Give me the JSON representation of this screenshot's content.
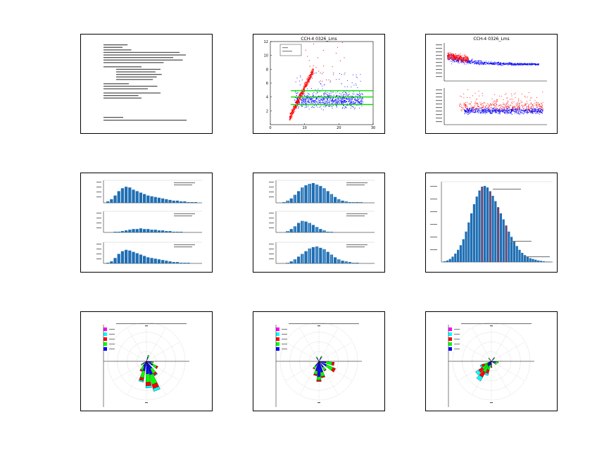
{
  "page": {
    "title": ""
  },
  "chart_data": [
    {
      "type": "table",
      "panel": "p1",
      "title": "",
      "note": "dense text page, mostly illegible at this resolution"
    },
    {
      "type": "scatter",
      "panel": "p2",
      "title": "CCH-4 0326_Lms",
      "xlim": [
        0,
        30
      ],
      "ylim": [
        0,
        12
      ],
      "xticks": [
        "0",
        "10",
        "20",
        "30"
      ],
      "yticks": [
        "2",
        "4",
        "6",
        "8",
        "10",
        "12"
      ],
      "xlabel": "",
      "ylabel": "",
      "series": [
        {
          "name": "",
          "color": "#0000ff"
        },
        {
          "name": "",
          "color": "#ff0000"
        }
      ],
      "hlines": [
        {
          "y": 2.9,
          "color": "#00dd00"
        },
        {
          "y": 4.0,
          "color": "#00dd00"
        },
        {
          "y": 4.9,
          "color": "#00dd00"
        }
      ]
    },
    {
      "type": "scatter",
      "panel": "p3",
      "title": "CCH-4 0326_Lms",
      "subplots": 2,
      "series": [
        {
          "name": "",
          "color": "#0000ff"
        },
        {
          "name": "",
          "color": "#ff0000"
        }
      ]
    },
    {
      "type": "bar",
      "panel": "p4",
      "title": "",
      "subplots": 3,
      "color": "#1f6fb4",
      "profiles": [
        [
          2,
          5,
          10,
          16,
          20,
          22,
          21,
          18,
          16,
          14,
          12,
          10,
          9,
          8,
          7,
          6,
          5,
          4,
          3,
          3,
          2,
          2,
          1,
          1,
          1
        ],
        [
          0,
          0,
          1,
          1,
          2,
          3,
          4,
          5,
          5,
          6,
          5,
          5,
          4,
          4,
          3,
          3,
          2,
          2,
          1,
          1,
          1,
          0,
          0,
          0,
          0
        ],
        [
          1,
          3,
          8,
          14,
          18,
          20,
          19,
          17,
          15,
          13,
          11,
          9,
          8,
          7,
          6,
          5,
          4,
          3,
          2,
          2,
          1,
          1,
          1,
          0,
          0
        ]
      ]
    },
    {
      "type": "bar",
      "panel": "p5",
      "title": "",
      "subplots": 3,
      "color": "#1f6fb4",
      "profiles": [
        [
          0,
          1,
          3,
          6,
          11,
          16,
          21,
          24,
          26,
          27,
          25,
          23,
          20,
          16,
          12,
          8,
          5,
          3,
          2,
          1,
          1,
          1,
          1,
          0,
          0
        ],
        [
          0,
          0,
          2,
          5,
          9,
          14,
          17,
          16,
          14,
          11,
          8,
          5,
          3,
          1,
          1,
          0,
          0,
          0,
          0,
          0,
          0,
          0,
          0,
          0,
          0
        ],
        [
          0,
          0,
          1,
          3,
          6,
          10,
          14,
          18,
          22,
          24,
          25,
          23,
          21,
          17,
          13,
          9,
          6,
          4,
          3,
          2,
          1,
          1,
          0,
          0,
          0
        ]
      ]
    },
    {
      "type": "bar",
      "panel": "p6",
      "title": "",
      "color": "#1f6fb4",
      "highlight_color": "#ff0000",
      "profile": [
        1,
        2,
        4,
        7,
        11,
        16,
        22,
        30,
        40,
        52,
        64,
        76,
        86,
        94,
        99,
        100,
        98,
        93,
        87,
        80,
        72,
        64,
        56,
        48,
        40,
        33,
        27,
        21,
        16,
        12,
        9,
        7,
        5,
        4,
        3,
        2,
        1.5,
        1,
        0.5,
        0.5
      ],
      "highlights": [
        14,
        17,
        20,
        23
      ]
    },
    {
      "type": "rose",
      "panel": "p7",
      "title": "",
      "legend_colors": [
        "#ff00ff",
        "#00ffff",
        "#ff0000",
        "#00ff00",
        "#0000ff"
      ],
      "petals": [
        {
          "deg": 160,
          "segs": [
            20,
            14,
            6,
            4
          ]
        },
        {
          "deg": 175,
          "segs": [
            18,
            12,
            5,
            3
          ]
        },
        {
          "deg": 195,
          "segs": [
            14,
            10,
            4,
            2
          ]
        },
        {
          "deg": 145,
          "segs": [
            12,
            8,
            3,
            1
          ]
        },
        {
          "deg": 210,
          "segs": [
            8,
            6,
            2,
            0
          ]
        },
        {
          "deg": 120,
          "segs": [
            10,
            6,
            2,
            0
          ]
        },
        {
          "deg": 100,
          "segs": [
            7,
            3,
            0,
            0
          ]
        },
        {
          "deg": 20,
          "segs": [
            6,
            3,
            0,
            0
          ]
        },
        {
          "deg": 235,
          "segs": [
            6,
            3,
            0,
            0
          ]
        }
      ]
    },
    {
      "type": "rose",
      "panel": "p8",
      "title": "",
      "legend_colors": [
        "#ff00ff",
        "#00ffff",
        "#ff0000",
        "#00ff00",
        "#0000ff"
      ],
      "petals": [
        {
          "deg": 180,
          "segs": [
            22,
            5,
            2,
            0
          ]
        },
        {
          "deg": 165,
          "segs": [
            16,
            6,
            2,
            0
          ]
        },
        {
          "deg": 195,
          "segs": [
            14,
            5,
            2,
            0
          ]
        },
        {
          "deg": 120,
          "segs": [
            12,
            10,
            4,
            0
          ]
        },
        {
          "deg": 100,
          "segs": [
            10,
            9,
            3,
            0
          ]
        },
        {
          "deg": 145,
          "segs": [
            10,
            5,
            1,
            0
          ]
        },
        {
          "deg": 215,
          "segs": [
            8,
            4,
            1,
            0
          ]
        },
        {
          "deg": 30,
          "segs": [
            6,
            2,
            0,
            0
          ]
        },
        {
          "deg": 330,
          "segs": [
            5,
            2,
            0,
            0
          ]
        }
      ]
    },
    {
      "type": "rose",
      "panel": "p9",
      "title": "",
      "legend_colors": [
        "#ff00ff",
        "#00ffff",
        "#ff0000",
        "#00ff00",
        "#0000ff"
      ],
      "petals": [
        {
          "deg": 215,
          "segs": [
            8,
            10,
            8,
            6
          ]
        },
        {
          "deg": 230,
          "segs": [
            7,
            9,
            6,
            5
          ]
        },
        {
          "deg": 200,
          "segs": [
            6,
            7,
            5,
            3
          ]
        },
        {
          "deg": 245,
          "segs": [
            5,
            6,
            4,
            2
          ]
        },
        {
          "deg": 100,
          "segs": [
            6,
            4,
            0,
            0
          ]
        },
        {
          "deg": 120,
          "segs": [
            5,
            3,
            0,
            0
          ]
        },
        {
          "deg": 40,
          "segs": [
            5,
            2,
            0,
            0
          ]
        },
        {
          "deg": 180,
          "segs": [
            5,
            3,
            1,
            0
          ]
        },
        {
          "deg": 320,
          "segs": [
            4,
            2,
            0,
            0
          ]
        }
      ]
    }
  ]
}
